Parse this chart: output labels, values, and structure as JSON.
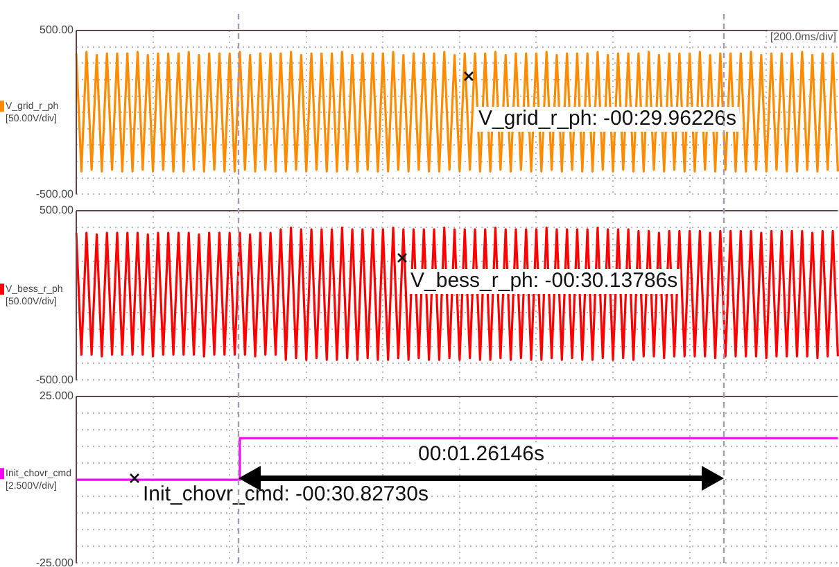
{
  "chart_data": [
    {
      "type": "line",
      "ylabel": "V_grid_r_ph [50.00V/div]",
      "annotations": [
        "V_grid_r_ph: -00:29.96226s",
        "[200.0ms/div]"
      ],
      "categories": [
        null,
        null,
        null,
        null,
        null,
        null,
        null,
        null,
        null,
        null,
        null,
        null,
        null,
        null,
        null,
        null,
        null,
        null,
        null,
        null,
        null,
        null,
        null,
        null,
        null,
        null,
        null,
        null,
        null,
        null,
        null,
        null,
        null,
        null,
        null,
        null,
        null,
        null,
        null,
        null,
        null,
        null,
        null,
        null,
        null,
        null,
        null,
        null,
        null,
        null,
        null,
        null,
        null,
        null,
        null,
        null,
        null,
        null,
        null,
        null,
        null,
        null,
        null,
        null,
        null,
        null,
        null,
        null,
        null,
        null,
        null,
        null,
        null,
        null,
        null,
        null,
        null,
        null,
        null,
        null,
        null,
        null,
        null,
        null,
        null,
        null,
        null,
        null,
        null,
        null,
        null,
        null,
        null,
        null,
        null,
        null,
        null,
        null,
        null,
        null,
        null,
        null,
        null,
        null,
        null,
        null,
        null,
        null,
        null,
        null,
        null,
        null,
        null,
        null,
        null,
        null,
        null,
        null,
        null,
        null,
        null,
        null,
        null,
        null,
        null,
        null,
        null,
        null,
        null,
        null,
        null,
        null,
        null,
        null,
        null,
        null,
        null,
        null,
        null,
        null,
        null,
        null,
        null,
        null,
        null,
        null,
        null,
        null,
        null,
        null
      ],
      "series": [
        {
          "color": "#ff8c00",
          "values": [
            360,
            -360,
            370,
            -350,
            350,
            -360,
            360,
            -350,
            360,
            -360,
            360,
            -360,
            370,
            -350,
            350,
            -360,
            360,
            -350,
            360,
            -360,
            360,
            -360,
            370,
            -350,
            350,
            -360,
            360,
            -350,
            360,
            -360,
            360,
            -360,
            370,
            -350,
            350,
            -360,
            360,
            -350,
            360,
            -360,
            360,
            -360,
            370,
            -350,
            350,
            -360,
            360,
            -350,
            360,
            -360,
            360,
            -360,
            370,
            -350,
            350,
            -360,
            360,
            -350,
            360,
            -360,
            360,
            -360,
            370,
            -350,
            350,
            -360,
            360,
            -350,
            360,
            -360,
            360,
            -360,
            370,
            -350,
            350,
            -360,
            360,
            -350,
            360,
            -360,
            360,
            -360,
            370,
            -350,
            350,
            -360,
            360,
            -350,
            360,
            -360,
            360,
            -360,
            370,
            -350,
            350,
            -360,
            360,
            -350,
            360,
            -360,
            360,
            -360,
            370,
            -350,
            350,
            -360,
            360,
            -350,
            360,
            -360,
            360,
            -360,
            370,
            -350,
            350,
            -360,
            360,
            -350,
            360,
            -360,
            360,
            -360,
            370,
            -350,
            350,
            -360,
            360,
            -350,
            360,
            -360,
            360,
            -360,
            370,
            -350,
            350,
            -360,
            360,
            -350,
            360,
            -360,
            360,
            -360,
            370,
            -350,
            350,
            -360,
            360,
            -350,
            360,
            -360
          ]
        }
      ],
      "ylim": [
        -500,
        500
      ],
      "yticks": [
        {
          "value": 500,
          "label": "500.00"
        },
        {
          "value": 400,
          "label": null
        },
        {
          "value": 300,
          "label": null
        },
        {
          "value": 200,
          "label": null
        },
        {
          "value": 100,
          "label": null
        },
        {
          "value": 0,
          "label": null
        },
        {
          "value": -100,
          "label": null
        },
        {
          "value": -200,
          "label": null
        },
        {
          "value": -300,
          "label": null
        },
        {
          "value": -400,
          "label": null
        },
        {
          "value": -500,
          "label": "-500.00"
        }
      ],
      "grid": true,
      "marker": "none",
      "line_style": "solid",
      "tick_labels": "y"
    },
    {
      "type": "line",
      "ylabel": "V_bess_r_ph [50.00V/div]",
      "annotations": [
        "V_bess_r_ph: -00:30.13786s"
      ],
      "categories": [
        null,
        null,
        null,
        null,
        null,
        null,
        null,
        null,
        null,
        null,
        null,
        null,
        null,
        null,
        null,
        null,
        null,
        null,
        null,
        null,
        null,
        null,
        null,
        null,
        null,
        null,
        null,
        null,
        null,
        null,
        null,
        null,
        null,
        null,
        null,
        null,
        null,
        null,
        null,
        null,
        null,
        null,
        null,
        null,
        null,
        null,
        null,
        null,
        null,
        null,
        null,
        null,
        null,
        null,
        null,
        null,
        null,
        null,
        null,
        null,
        null,
        null,
        null,
        null,
        null,
        null,
        null,
        null,
        null,
        null,
        null,
        null,
        null,
        null,
        null,
        null,
        null,
        null,
        null,
        null,
        null,
        null,
        null,
        null,
        null,
        null,
        null,
        null,
        null,
        null,
        null,
        null,
        null,
        null,
        null,
        null,
        null,
        null,
        null,
        null,
        null,
        null,
        null,
        null,
        null,
        null,
        null,
        null,
        null,
        null,
        null,
        null,
        null,
        null,
        null,
        null,
        null,
        null,
        null,
        null,
        null,
        null,
        null,
        null,
        null,
        null,
        null,
        null,
        null,
        null,
        null,
        null,
        null,
        null,
        null,
        null,
        null,
        null,
        null,
        null,
        null,
        null,
        null,
        null,
        null,
        null,
        null,
        null,
        null,
        null
      ],
      "series": [
        {
          "color": "#ff0000",
          "values": [
            370,
            -350,
            370,
            -350,
            360,
            -360,
            370,
            -350,
            370,
            -350,
            370,
            -350,
            370,
            -350,
            360,
            -360,
            370,
            -350,
            370,
            -350,
            370,
            -350,
            370,
            -350,
            360,
            -360,
            370,
            -350,
            370,
            -350,
            370,
            -350,
            370,
            -350,
            360,
            -360,
            370,
            -350,
            370,
            -350,
            390,
            -380,
            400,
            -370,
            390,
            -380,
            390,
            -370,
            390,
            -380,
            390,
            -380,
            400,
            -370,
            390,
            -380,
            390,
            -370,
            390,
            -380,
            390,
            -380,
            400,
            -370,
            390,
            -380,
            390,
            -370,
            390,
            -380,
            390,
            -380,
            400,
            -370,
            390,
            -380,
            390,
            -370,
            390,
            -380,
            390,
            -380,
            400,
            -370,
            390,
            -380,
            390,
            -370,
            390,
            -380,
            390,
            -380,
            400,
            -370,
            390,
            -380,
            390,
            -370,
            390,
            -380,
            390,
            -380,
            400,
            -370,
            390,
            -380,
            390,
            -370,
            390,
            -380,
            380,
            -360,
            380,
            -360,
            370,
            -370,
            380,
            -360,
            380,
            -360,
            380,
            -360,
            380,
            -360,
            370,
            -370,
            380,
            -360,
            380,
            -360,
            380,
            -360,
            380,
            -360,
            370,
            -370,
            380,
            -360,
            380,
            -360,
            380,
            -360,
            380,
            -360,
            370,
            -370,
            380,
            -360,
            380,
            -360
          ]
        }
      ],
      "ylim": [
        -500,
        500
      ],
      "yticks": [
        {
          "value": 500,
          "label": "500.00"
        },
        {
          "value": 400,
          "label": null
        },
        {
          "value": 300,
          "label": null
        },
        {
          "value": 200,
          "label": null
        },
        {
          "value": 100,
          "label": null
        },
        {
          "value": 0,
          "label": null
        },
        {
          "value": -100,
          "label": null
        },
        {
          "value": -200,
          "label": null
        },
        {
          "value": -300,
          "label": null
        },
        {
          "value": -400,
          "label": null
        },
        {
          "value": -500,
          "label": "-500.00"
        }
      ],
      "grid": true,
      "marker": "none",
      "line_style": "solid",
      "tick_labels": "y"
    },
    {
      "type": "step",
      "ylabel": "Init_chovr_cmd [2.500V/div]",
      "annotations": [
        "Init_chovr_cmd: -00:30.82730s",
        "00:01.26146s"
      ],
      "categories": [
        null,
        null,
        null,
        null,
        null,
        null,
        null,
        null,
        null,
        null,
        null,
        null,
        null,
        null,
        null,
        null,
        null,
        null,
        null,
        null,
        null,
        null,
        null,
        null,
        null,
        null,
        null,
        null,
        null,
        null,
        null,
        null,
        null,
        null,
        null,
        null,
        null,
        null,
        null,
        null,
        null,
        null,
        null,
        null,
        null,
        null,
        null,
        null,
        null,
        null,
        null,
        null,
        null,
        null,
        null,
        null,
        null,
        null,
        null,
        null,
        null,
        null,
        null,
        null,
        null,
        null,
        null,
        null,
        null,
        null,
        null,
        null,
        null,
        null,
        null,
        null,
        null,
        null,
        null,
        null,
        null,
        null,
        null,
        null,
        null,
        null,
        null,
        null,
        null,
        null,
        null,
        null,
        null,
        null,
        null,
        null,
        null,
        null,
        null,
        null,
        null,
        null,
        null,
        null,
        null,
        null,
        null,
        null,
        null,
        null,
        null,
        null,
        null,
        null,
        null,
        null,
        null,
        null,
        null,
        null,
        null,
        null,
        null,
        null,
        null,
        null,
        null,
        null,
        null,
        null,
        null,
        null,
        null,
        null,
        null,
        null,
        null,
        null,
        null,
        null,
        null,
        null,
        null,
        null,
        null,
        null,
        null,
        null,
        null,
        null
      ],
      "series": [
        {
          "color": "#ff00ff",
          "values": [
            0,
            0,
            0,
            0,
            0,
            0,
            0,
            0,
            0,
            0,
            0,
            0,
            0,
            0,
            0,
            0,
            0,
            0,
            0,
            0,
            0,
            0,
            0,
            0,
            0,
            0,
            0,
            0,
            0,
            0,
            0,
            0,
            12.5,
            12.5,
            12.5,
            12.5,
            12.5,
            12.5,
            12.5,
            12.5,
            12.5,
            12.5,
            12.5,
            12.5,
            12.5,
            12.5,
            12.5,
            12.5,
            12.5,
            12.5,
            12.5,
            12.5,
            12.5,
            12.5,
            12.5,
            12.5,
            12.5,
            12.5,
            12.5,
            12.5,
            12.5,
            12.5,
            12.5,
            12.5,
            12.5,
            12.5,
            12.5,
            12.5,
            12.5,
            12.5,
            12.5,
            12.5,
            12.5,
            12.5,
            12.5,
            12.5,
            12.5,
            12.5,
            12.5,
            12.5,
            12.5,
            12.5,
            12.5,
            12.5,
            12.5,
            12.5,
            12.5,
            12.5,
            12.5,
            12.5,
            12.5,
            12.5,
            12.5,
            12.5,
            12.5,
            12.5,
            12.5,
            12.5,
            12.5,
            12.5,
            12.5,
            12.5,
            12.5,
            12.5,
            12.5,
            12.5,
            12.5,
            12.5,
            12.5,
            12.5,
            12.5,
            12.5,
            12.5,
            12.5,
            12.5,
            12.5,
            12.5,
            12.5,
            12.5,
            12.5,
            12.5,
            12.5,
            12.5,
            12.5,
            12.5,
            12.5,
            12.5,
            12.5,
            12.5,
            12.5,
            12.5,
            12.5,
            12.5,
            12.5,
            12.5,
            12.5,
            12.5,
            12.5,
            12.5,
            12.5,
            12.5,
            12.5,
            12.5,
            12.5,
            12.5,
            12.5,
            12.5,
            12.5,
            12.5,
            12.5
          ]
        }
      ],
      "ylim": [
        -25,
        25
      ],
      "yticks": [
        {
          "value": 25,
          "label": "25.000"
        },
        {
          "value": 20,
          "label": null
        },
        {
          "value": 15,
          "label": null
        },
        {
          "value": 10,
          "label": null
        },
        {
          "value": 5,
          "label": null
        },
        {
          "value": 0,
          "label": null
        },
        {
          "value": -5,
          "label": null
        },
        {
          "value": -10,
          "label": null
        },
        {
          "value": -15,
          "label": null
        },
        {
          "value": -20,
          "label": null
        },
        {
          "value": -25,
          "label": "-25.000"
        }
      ],
      "grid": true,
      "marker": "none",
      "line_style": "solid",
      "tick_labels": "y"
    }
  ]
}
